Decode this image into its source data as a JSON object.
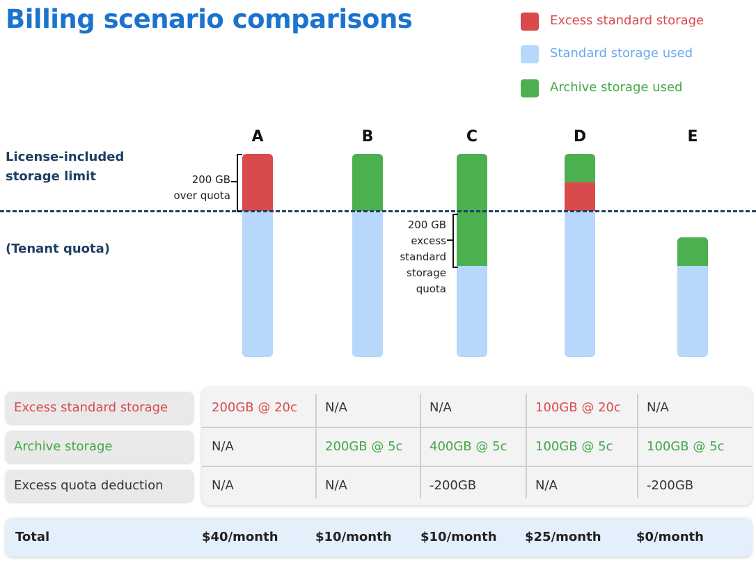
{
  "title": "Billing scenario comparisons",
  "colors": {
    "excess": "#d94a4d",
    "standard": "#b7d7fb",
    "archive": "#4caf50",
    "title": "#1a73cf",
    "navy": "#1f3f63"
  },
  "legend": [
    {
      "label": "Excess standard storage",
      "color": "#d94a4d"
    },
    {
      "label": "Standard storage used",
      "color": "#6aa8ef",
      "swatch": "#b7d7fb"
    },
    {
      "label": "Archive storage used",
      "color": "#3fa845",
      "swatch": "#4caf50"
    }
  ],
  "left_labels": {
    "limit_line1": "License-included",
    "limit_line2": "storage limit",
    "tenant": "(Tenant quota)"
  },
  "columns": [
    "A",
    "B",
    "C",
    "D",
    "E"
  ],
  "annotations": {
    "a_line1": "200 GB",
    "a_line2": "over quota",
    "c_line1": "200 GB",
    "c_line2": "excess",
    "c_line3": "standard",
    "c_line4": "storage",
    "c_line5": "quota"
  },
  "table": {
    "rows": [
      {
        "label": "Excess standard storage",
        "label_color": "#d94a4d",
        "cells": [
          {
            "text": "200GB @ 20c",
            "color": "#d94a4d"
          },
          {
            "text": "N/A",
            "color": "#333333"
          },
          {
            "text": "N/A",
            "color": "#333333"
          },
          {
            "text": "100GB @ 20c",
            "color": "#d94a4d"
          },
          {
            "text": "N/A",
            "color": "#333333"
          }
        ]
      },
      {
        "label": "Archive storage",
        "label_color": "#3fa845",
        "cells": [
          {
            "text": "N/A",
            "color": "#333333"
          },
          {
            "text": "200GB @ 5c",
            "color": "#3fa845"
          },
          {
            "text": "400GB @ 5c",
            "color": "#3fa845"
          },
          {
            "text": "100GB @ 5c",
            "color": "#3fa845"
          },
          {
            "text": "100GB @ 5c",
            "color": "#3fa845"
          }
        ]
      },
      {
        "label": "Excess quota deduction",
        "label_color": "#333333",
        "cells": [
          {
            "text": "N/A",
            "color": "#333333"
          },
          {
            "text": "N/A",
            "color": "#333333"
          },
          {
            "text": "-200GB",
            "color": "#333333"
          },
          {
            "text": "N/A",
            "color": "#333333"
          },
          {
            "text": "-200GB",
            "color": "#333333"
          }
        ]
      }
    ]
  },
  "total": {
    "label": "Total",
    "values": [
      "$40/month",
      "$10/month",
      "$10/month",
      "$25/month",
      "$0/month"
    ]
  }
}
